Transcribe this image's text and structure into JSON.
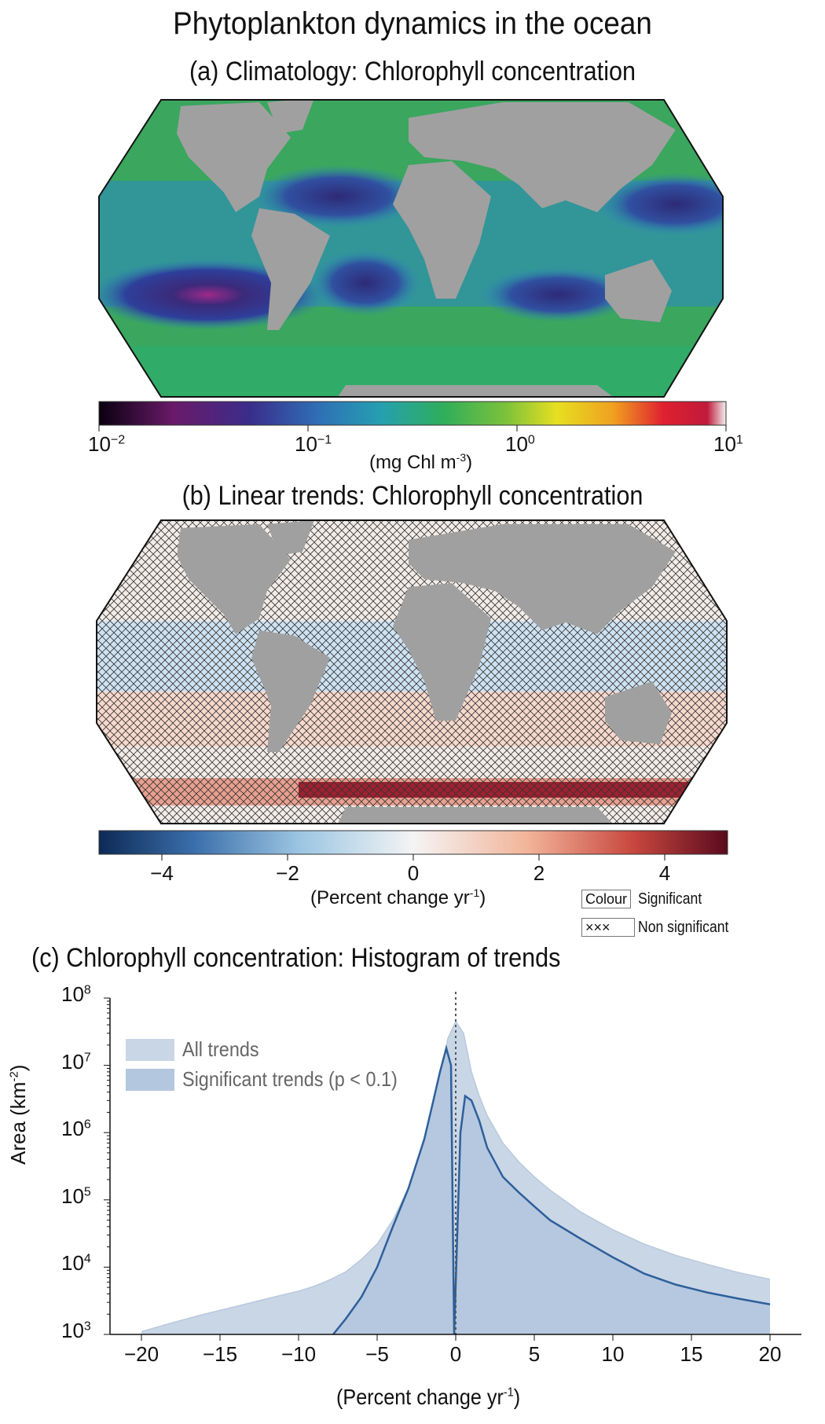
{
  "title": "Phytoplankton dynamics in the ocean",
  "colors": {
    "land": "#a0a0a0",
    "ocean_mid": "#2fae6a",
    "all_trends_fill": "#c9d6e6",
    "sig_trends_fill": "#b3c7de",
    "sig_trends_line": "#2e5f9a"
  },
  "panel_a": {
    "title": "(a) Climatology: Chlorophyll concentration",
    "colorbar_label": "(mg Chl m",
    "colorbar_label_sup": "-3",
    "colorbar_label_end": ")",
    "colorbar_ticks": [
      {
        "base": "10",
        "exp": "−2"
      },
      {
        "base": "10",
        "exp": "−1"
      },
      {
        "base": "10",
        "exp": "0"
      },
      {
        "base": "10",
        "exp": "1"
      }
    ]
  },
  "panel_b": {
    "title": "(b) Linear trends: Chlorophyll concentration",
    "colorbar_label": "(Percent change yr",
    "colorbar_label_sup": "-1",
    "colorbar_label_end": ")",
    "colorbar_ticks": [
      "−4",
      "−2",
      "0",
      "2",
      "4"
    ],
    "colorbar_range": [
      -5,
      5
    ],
    "key": {
      "significant_box": "Colour",
      "significant_label": "Significant",
      "nonsignificant_box": "××× ",
      "nonsignificant_label": "Non significant"
    }
  },
  "chart_data": {
    "type": "area",
    "title": "(c) Chlorophyll concentration: Histogram of trends",
    "xlabel": "(Percent change yr",
    "xlabel_sup": "-1",
    "xlabel_end": ")",
    "ylabel": "Area (km",
    "ylabel_sup": "-2",
    "ylabel_end": ")",
    "xlim": [
      -22,
      22
    ],
    "ylim_log10": [
      3,
      8
    ],
    "y_scale": "log",
    "x_ticks": [
      "−20",
      "−15",
      "−10",
      "−5",
      "0",
      "5",
      "10",
      "15",
      "20"
    ],
    "x_tick_values": [
      -20,
      -15,
      -10,
      -5,
      0,
      5,
      10,
      15,
      20
    ],
    "y_ticks": [
      {
        "base": "10",
        "exp": "3"
      },
      {
        "base": "10",
        "exp": "4"
      },
      {
        "base": "10",
        "exp": "5"
      },
      {
        "base": "10",
        "exp": "6"
      },
      {
        "base": "10",
        "exp": "7"
      },
      {
        "base": "10",
        "exp": "8"
      }
    ],
    "vline_x": 0,
    "legend_position": "top-left",
    "series": [
      {
        "name": "All trends",
        "x": [
          -20,
          -18,
          -16,
          -14,
          -12,
          -10,
          -9,
          -8,
          -7,
          -6,
          -5,
          -4,
          -3,
          -2,
          -1.5,
          -1,
          -0.5,
          0,
          0.5,
          1,
          1.5,
          2,
          3,
          4,
          5,
          6,
          8,
          10,
          12,
          14,
          16,
          18,
          20
        ],
        "y": [
          1100,
          1500,
          2000,
          2600,
          3400,
          4400,
          5200,
          6500,
          8500,
          13000,
          22000,
          50000,
          150000,
          700000,
          1800000,
          6000000,
          25000000,
          45000000,
          30000000,
          8000000,
          3500000,
          1800000,
          700000,
          370000,
          220000,
          140000,
          65000,
          36000,
          22000,
          15000,
          11000,
          8300,
          6600
        ]
      },
      {
        "name": "Significant trends (p < 0.1)",
        "x": [
          -7.8,
          -7,
          -6,
          -5,
          -4,
          -3,
          -2,
          -1.5,
          -1,
          -0.6,
          -0.3,
          -0.1,
          0.3,
          0.6,
          1,
          1.5,
          2,
          3,
          4,
          5,
          6,
          8,
          10,
          12,
          14,
          16,
          18,
          20
        ],
        "y": [
          1000,
          1700,
          3600,
          10000,
          40000,
          150000,
          800000,
          2500000,
          8000000,
          18000000,
          10000000,
          1000,
          1000000,
          3500000,
          3000000,
          1500000,
          600000,
          220000,
          130000,
          80000,
          50000,
          26000,
          14000,
          8000,
          5500,
          4200,
          3400,
          2800
        ]
      }
    ]
  }
}
